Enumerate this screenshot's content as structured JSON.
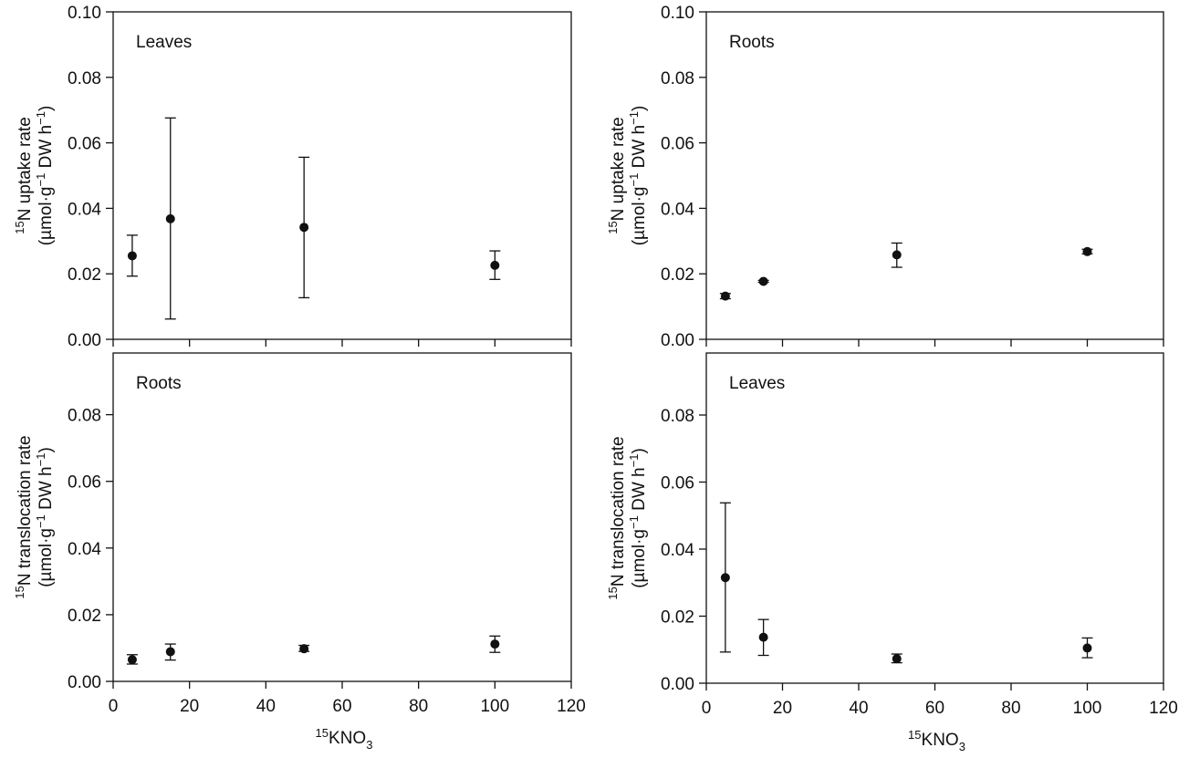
{
  "figure": {
    "x_axis_title": {
      "sup": "15",
      "main": "KNO",
      "sub": "3"
    },
    "y_axis_titles": {
      "uptake": {
        "sup": "15",
        "main": "N uptake rate"
      },
      "translocation": {
        "sup": "15",
        "main": "N translocation rate"
      },
      "units": {
        "part1": "(µmol·g",
        "exp1": "−1",
        "part2": " DW h",
        "exp2": "−1",
        "part3": ")"
      }
    }
  },
  "chart_data": [
    {
      "type": "scatter",
      "panel": "top-left",
      "label": "Leaves",
      "measure": "uptake",
      "x": [
        5,
        15,
        50,
        100
      ],
      "y": [
        0.0255,
        0.0368,
        0.0342,
        0.0226
      ],
      "yerr_upper": [
        0.0318,
        0.0676,
        0.0556,
        0.027
      ],
      "yerr_lower": [
        0.0193,
        0.0062,
        0.0127,
        0.0183
      ],
      "xlim": [
        0,
        120
      ],
      "ylim": [
        0,
        0.1
      ],
      "xticks": [],
      "yticks": [
        "0.00",
        "0.02",
        "0.04",
        "0.06",
        "0.08",
        "0.10"
      ]
    },
    {
      "type": "scatter",
      "panel": "top-right",
      "label": "Roots",
      "measure": "uptake",
      "x": [
        5,
        15,
        50,
        100
      ],
      "y": [
        0.0132,
        0.0177,
        0.0258,
        0.0268
      ],
      "yerr_upper": [
        0.014,
        0.018,
        0.0294,
        0.0275
      ],
      "yerr_lower": [
        0.0124,
        0.0174,
        0.022,
        0.0261
      ],
      "xlim": [
        0,
        120
      ],
      "ylim": [
        0,
        0.1
      ],
      "xticks": [],
      "yticks": [
        "0.00",
        "0.02",
        "0.04",
        "0.06",
        "0.08",
        "0.10"
      ]
    },
    {
      "type": "scatter",
      "panel": "bottom-left",
      "label": "Roots",
      "measure": "translocation",
      "x": [
        5,
        15,
        50,
        100
      ],
      "y": [
        0.0065,
        0.0089,
        0.0098,
        0.0112
      ],
      "yerr_upper": [
        0.008,
        0.0112,
        0.0108,
        0.0136
      ],
      "yerr_lower": [
        0.0052,
        0.0064,
        0.009,
        0.0087
      ],
      "xlim": [
        0,
        120
      ],
      "ylim": [
        0,
        0.1
      ],
      "xticks": [
        "0",
        "20",
        "40",
        "60",
        "80",
        "100",
        "120"
      ],
      "yticks": [
        "0.00",
        "0.02",
        "0.04",
        "0.06",
        "0.08"
      ]
    },
    {
      "type": "scatter",
      "panel": "bottom-right",
      "label": "Leaves",
      "measure": "translocation",
      "x": [
        5,
        15,
        50,
        100
      ],
      "y": [
        0.0315,
        0.0137,
        0.0073,
        0.0105
      ],
      "yerr_upper": [
        0.0538,
        0.019,
        0.0087,
        0.0135
      ],
      "yerr_lower": [
        0.0093,
        0.0083,
        0.0061,
        0.0076
      ],
      "xlim": [
        0,
        120
      ],
      "ylim": [
        0,
        0.1
      ],
      "xticks": [
        "0",
        "20",
        "40",
        "60",
        "80",
        "100",
        "120"
      ],
      "yticks": [
        "0.00",
        "0.02",
        "0.04",
        "0.06",
        "0.08"
      ]
    }
  ]
}
